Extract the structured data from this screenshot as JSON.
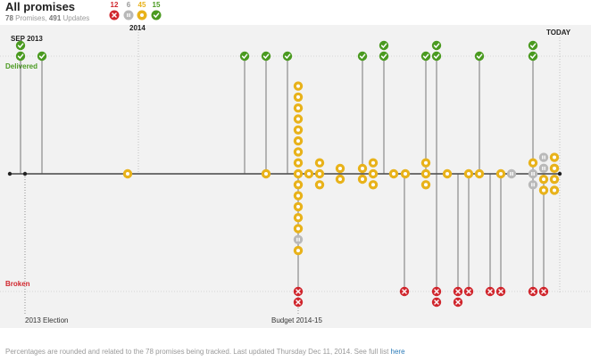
{
  "header": {
    "title": "All promises",
    "subtitle_count": "78",
    "subtitle_mid": " Promises, ",
    "subtitle_updates": "491",
    "subtitle_tail": " Updates"
  },
  "legend": [
    {
      "status": "broken",
      "count": "12",
      "color": "#d0262d",
      "icon": "x-icon"
    },
    {
      "status": "stalled",
      "count": "6",
      "color": "#b9b9b9",
      "icon": "pause-icon"
    },
    {
      "status": "in-progress",
      "count": "45",
      "color": "#e8b21a",
      "icon": "circle-icon"
    },
    {
      "status": "delivered",
      "count": "15",
      "color": "#4a9a20",
      "icon": "check-icon"
    }
  ],
  "labels": {
    "start": "SEP 2013",
    "year": "2014",
    "today": "TODAY",
    "delivered": "Delivered",
    "broken": "Broken",
    "election": "2013 Election",
    "budget": "Budget 2014-15"
  },
  "footer": {
    "text": "Percentages are rounded and related to the 78 promises being tracked. Last updated Thursday Dec 11, 2014. See full list ",
    "link": "here"
  },
  "chart_data": {
    "type": "scatter",
    "title": "All promises",
    "x_axis": {
      "start": "SEP 2013",
      "end": "TODAY",
      "ticks": [
        "2014"
      ]
    },
    "rows": {
      "top": "Delivered",
      "bottom": "Broken"
    },
    "events": [
      {
        "label": "2013 Election",
        "col": 1
      },
      {
        "label": "Budget 2014-15",
        "col": 12
      }
    ],
    "columns": [
      {
        "col": 0,
        "delivered": 2,
        "in_progress_above": [],
        "in_progress_below": [],
        "broken": 0
      },
      {
        "col": 2,
        "delivered": 1
      },
      {
        "col": 5,
        "center": [
          "in-progress"
        ]
      },
      {
        "col": 10,
        "delivered": 1
      },
      {
        "col": 11,
        "delivered": 1,
        "center": [
          "in-progress"
        ]
      },
      {
        "col": 12,
        "delivered": 1,
        "stack_above": 10,
        "stack_below_ip": 6,
        "stack_below_stalled": 1,
        "stack_below_ip2": 1,
        "broken": 2
      },
      {
        "col": 13,
        "center": [
          "in-progress",
          "in-progress",
          "in-progress"
        ]
      },
      {
        "col": 14,
        "center": [
          "in-progress",
          "in-progress",
          "in-progress"
        ]
      },
      {
        "col": 15,
        "center": [
          "in-progress",
          "in-progress"
        ]
      },
      {
        "col": 16,
        "delivered": 1,
        "center": [
          "in-progress",
          "in-progress"
        ]
      },
      {
        "col": 17,
        "delivered": 2,
        "center": [
          "in-progress",
          "in-progress",
          "in-progress"
        ]
      },
      {
        "col": 18,
        "center": [
          "in-progress"
        ]
      },
      {
        "col": 19,
        "center": [
          "in-progress"
        ],
        "broken": 1
      },
      {
        "col": 20,
        "delivered": 1,
        "center": [
          "in-progress",
          "in-progress",
          "in-progress"
        ]
      },
      {
        "col": 21,
        "delivered": 2,
        "center": [],
        "broken": 2
      },
      {
        "col": 22,
        "center": [
          "in-progress"
        ]
      },
      {
        "col": 23,
        "center": [],
        "broken": 2
      },
      {
        "col": 24,
        "center": [
          "in-progress"
        ],
        "broken": 1
      },
      {
        "col": 25,
        "delivered": 1,
        "center": [
          "in-progress"
        ]
      },
      {
        "col": 26,
        "center": [],
        "broken": 1
      },
      {
        "col": 27,
        "center": [
          "in-progress"
        ],
        "broken": 1
      },
      {
        "col": 28,
        "center": [
          "stalled"
        ]
      },
      {
        "col": 29,
        "delivered": 2,
        "center": [
          "in-progress",
          "stalled",
          "stalled"
        ],
        "broken": 1
      },
      {
        "col": 30,
        "center": [
          "stalled",
          "stalled",
          "in-progress",
          "in-progress"
        ],
        "broken": 1
      },
      {
        "col": 31,
        "center": [
          "in-progress",
          "in-progress",
          "in-progress",
          "in-progress"
        ]
      }
    ]
  }
}
